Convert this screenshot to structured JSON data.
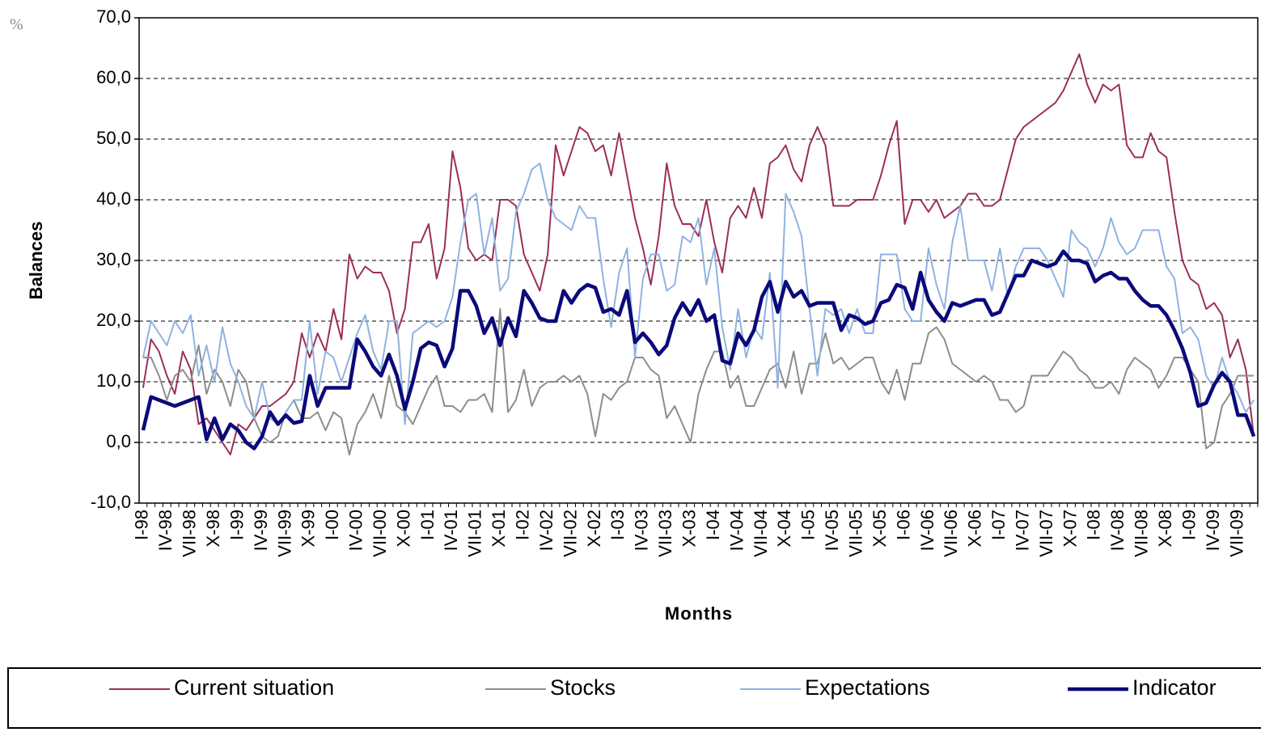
{
  "chart_data": {
    "type": "line",
    "unit_note": "%",
    "y_label": "Balances",
    "x_label": "Months",
    "categories": [
      "I-98",
      null,
      null,
      "IV-98",
      null,
      null,
      "VII-98",
      null,
      null,
      "X-98",
      null,
      null,
      "I-99",
      null,
      null,
      "IV-99",
      null,
      null,
      "VII-99",
      null,
      null,
      "X-99",
      null,
      null,
      "I-00",
      null,
      null,
      "IV-00",
      null,
      null,
      "VII-00",
      null,
      null,
      "X-00",
      null,
      null,
      "I-01",
      null,
      null,
      "IV-01",
      null,
      null,
      "VII-01",
      null,
      null,
      "X-01",
      null,
      null,
      "I-02",
      null,
      null,
      "IV-02",
      null,
      null,
      "VII-02",
      null,
      null,
      "X-02",
      null,
      null,
      "I-03",
      null,
      null,
      "IV-03",
      null,
      null,
      "VII-03",
      null,
      null,
      "X-03",
      null,
      null,
      "I-04",
      null,
      null,
      "IV-04",
      null,
      null,
      "VII-04",
      null,
      null,
      "X-04",
      null,
      null,
      "I-05",
      null,
      null,
      "IV-05",
      null,
      null,
      "VII-05",
      null,
      null,
      "X-05",
      null,
      null,
      "I-06",
      null,
      null,
      "IV-06",
      null,
      null,
      "VII-06",
      null,
      null,
      "X-06",
      null,
      null,
      "I-07",
      null,
      null,
      "IV-07",
      null,
      null,
      "VII-07",
      null,
      null,
      "X-07",
      null,
      null,
      "I-08",
      null,
      null,
      "IV-08",
      null,
      null,
      "VII-08",
      null,
      null,
      "X-08",
      null,
      null,
      "I-09",
      null,
      null,
      "IV-09",
      null,
      null,
      "VII-09",
      null,
      null
    ],
    "series": [
      {
        "name": "Current situation",
        "color": "#9b2d5a",
        "width": 2,
        "values": [
          9,
          17,
          15,
          11,
          8,
          15,
          12,
          3,
          4,
          2,
          0,
          -2,
          3,
          2,
          4,
          6,
          6,
          7,
          8,
          10,
          18,
          14,
          18,
          15,
          22,
          17,
          31,
          27,
          29,
          28,
          28,
          25,
          18,
          22,
          33,
          33,
          36,
          27,
          32,
          48,
          42,
          32,
          30,
          31,
          30,
          40,
          40,
          39,
          31,
          28,
          25,
          31,
          49,
          44,
          48,
          52,
          51,
          48,
          49,
          44,
          51,
          44,
          37,
          32,
          26,
          34,
          46,
          39,
          36,
          36,
          34,
          40,
          33,
          28,
          37,
          39,
          37,
          42,
          37,
          46,
          47,
          49,
          45,
          43,
          49,
          52,
          49,
          39,
          39,
          39,
          40,
          40,
          40,
          44,
          49,
          53,
          36,
          40,
          40,
          38,
          40,
          37,
          38,
          39,
          41,
          41,
          39,
          39,
          40,
          45,
          50,
          52,
          53,
          54,
          55,
          56,
          58,
          61,
          64,
          59,
          56,
          59,
          58,
          59,
          49,
          47,
          47,
          51,
          48,
          47,
          38,
          30,
          27,
          26,
          22,
          23,
          21,
          14,
          17,
          12,
          1
        ]
      },
      {
        "name": "Stocks",
        "color": "#8c8c8c",
        "width": 2,
        "values": [
          14,
          14,
          11,
          7,
          11,
          12,
          10,
          16,
          8,
          12,
          10,
          6,
          12,
          10,
          4,
          1,
          0,
          1,
          5,
          7,
          4,
          4,
          5,
          2,
          5,
          4,
          -2,
          3,
          5,
          8,
          4,
          11,
          6,
          5,
          3,
          6,
          9,
          11,
          6,
          6,
          5,
          7,
          7,
          8,
          5,
          22,
          5,
          7,
          12,
          6,
          9,
          10,
          10,
          11,
          10,
          11,
          8,
          1,
          8,
          7,
          9,
          10,
          14,
          14,
          12,
          11,
          4,
          6,
          3,
          0,
          8,
          12,
          15,
          15,
          9,
          11,
          6,
          6,
          9,
          12,
          13,
          9,
          15,
          8,
          13,
          13,
          18,
          13,
          14,
          12,
          13,
          14,
          14,
          10,
          8,
          12,
          7,
          13,
          13,
          18,
          19,
          17,
          13,
          12,
          11,
          10,
          11,
          10,
          7,
          7,
          5,
          6,
          11,
          11,
          11,
          13,
          15,
          14,
          12,
          11,
          9,
          9,
          10,
          8,
          12,
          14,
          13,
          12,
          9,
          11,
          14,
          14,
          12,
          10,
          -1,
          0,
          6,
          8,
          11,
          11,
          11
        ]
      },
      {
        "name": "Expectations",
        "color": "#8fb2e0",
        "width": 2,
        "values": [
          14,
          20,
          18,
          16,
          20,
          18,
          21,
          11,
          16,
          10,
          19,
          13,
          10,
          6,
          4,
          10,
          4,
          3,
          5,
          7,
          7,
          20,
          8,
          15,
          14,
          10,
          14,
          18,
          21,
          15,
          12,
          20,
          20,
          3,
          18,
          19,
          20,
          19,
          20,
          24,
          33,
          40,
          41,
          31,
          37,
          25,
          27,
          38,
          41,
          45,
          46,
          40,
          37,
          36,
          35,
          39,
          37,
          37,
          27,
          19,
          28,
          32,
          14,
          27,
          31,
          31,
          25,
          26,
          34,
          33,
          37,
          26,
          32,
          19,
          12,
          22,
          14,
          19,
          17,
          28,
          9,
          41,
          38,
          34,
          22,
          11,
          22,
          21,
          22,
          18,
          22,
          18,
          18,
          31,
          31,
          31,
          22,
          20,
          20,
          32,
          26,
          22,
          33,
          39,
          30,
          30,
          30,
          25,
          32,
          24,
          29,
          32,
          32,
          32,
          30,
          27,
          24,
          35,
          33,
          32,
          29,
          32,
          37,
          33,
          31,
          32,
          35,
          35,
          35,
          29,
          27,
          18,
          19,
          17,
          11,
          9,
          14,
          10,
          8,
          5,
          7
        ]
      },
      {
        "name": "Indicator",
        "color": "#0a0a7a",
        "width": 4.5,
        "values": [
          2,
          7.5,
          7,
          6.5,
          6,
          6.5,
          7,
          7.5,
          0.5,
          4,
          0.5,
          3,
          2,
          0,
          -1,
          1,
          5,
          3,
          4.5,
          3.2,
          3.5,
          11,
          6,
          9,
          9,
          9,
          9,
          17,
          15,
          12.5,
          11,
          14.5,
          11,
          5.5,
          10,
          15.5,
          16.5,
          16,
          12.5,
          15.5,
          25,
          25,
          22.5,
          18,
          20.5,
          16,
          20.5,
          17.5,
          25,
          23,
          20.5,
          20,
          20,
          25,
          23,
          25,
          26,
          25.5,
          21.5,
          22,
          21,
          25,
          16.5,
          18,
          16.5,
          14.5,
          16,
          20.5,
          23,
          21,
          23.5,
          20,
          21,
          13.5,
          13,
          18,
          16,
          18.5,
          24,
          26.5,
          21.5,
          26.5,
          24,
          25,
          22.5,
          23,
          23,
          23,
          18.5,
          21,
          20.5,
          19.5,
          20,
          23,
          23.5,
          26,
          25.5,
          22,
          28,
          23.5,
          21.5,
          20,
          23,
          22.5,
          23,
          23.5,
          23.5,
          21,
          21.5,
          24.5,
          27.5,
          27.5,
          30,
          29.5,
          29,
          29.5,
          31.5,
          30,
          30,
          29.5,
          26.5,
          27.5,
          28,
          27,
          27,
          25,
          23.5,
          22.5,
          22.5,
          21,
          18.5,
          15.5,
          11.5,
          6,
          6.5,
          9.5,
          11.5,
          10,
          4.5,
          4.5,
          1
        ]
      }
    ],
    "ylim": [
      -10,
      70
    ],
    "yticks": [
      {
        "value": -10,
        "label": "-10,0"
      },
      {
        "value": 0,
        "label": "0,0"
      },
      {
        "value": 10,
        "label": "10,0"
      },
      {
        "value": 20,
        "label": "20,0"
      },
      {
        "value": 30,
        "label": "30,0"
      },
      {
        "value": 40,
        "label": "40,0"
      },
      {
        "value": 50,
        "label": "50,0"
      },
      {
        "value": 60,
        "label": "60,0"
      },
      {
        "value": 70,
        "label": "70,0"
      }
    ],
    "grid": true,
    "legend": "bottom"
  }
}
